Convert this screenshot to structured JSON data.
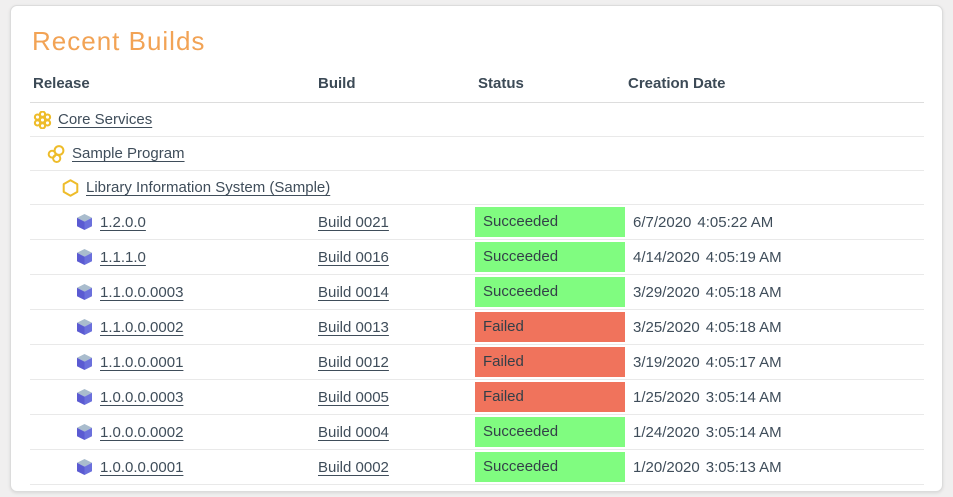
{
  "panel": {
    "title": "Recent Builds"
  },
  "colors": {
    "succeeded_bg": "#80fc80",
    "failed_bg": "#f0735c",
    "title_accent": "#f2a355",
    "icon_yellow": "#eebc2a",
    "cube_top": "#a9bccd",
    "cube_left": "#5a5ad2",
    "cube_right": "#6b70dc"
  },
  "table": {
    "columns": [
      "Release",
      "Build",
      "Status",
      "Creation Date"
    ],
    "rows": [
      {
        "type": "group",
        "level": 0,
        "icon": "program-cluster-icon",
        "release": "Core Services",
        "build": "",
        "status": "",
        "status_key": "",
        "date": ""
      },
      {
        "type": "group",
        "level": 1,
        "icon": "program-circles-icon",
        "release": "Sample Program",
        "build": "",
        "status": "",
        "status_key": "",
        "date": ""
      },
      {
        "type": "group",
        "level": 2,
        "icon": "project-hexagon-icon",
        "release": "Library Information System (Sample)",
        "build": "",
        "status": "",
        "status_key": "",
        "date": ""
      },
      {
        "type": "release",
        "level": 3,
        "icon": "release-cube-icon",
        "release": "1.2.0.0",
        "build": "Build 0021",
        "status": "Succeeded",
        "status_key": "succeeded",
        "date": "6/7/2020",
        "time": "4:05:22 AM"
      },
      {
        "type": "release",
        "level": 3,
        "icon": "release-cube-icon",
        "release": "1.1.1.0",
        "build": "Build 0016",
        "status": "Succeeded",
        "status_key": "succeeded",
        "date": "4/14/2020",
        "time": "4:05:19 AM"
      },
      {
        "type": "release",
        "level": 3,
        "icon": "release-cube-icon",
        "release": "1.1.0.0.0003",
        "build": "Build 0014",
        "status": "Succeeded",
        "status_key": "succeeded",
        "date": "3/29/2020",
        "time": "4:05:18 AM"
      },
      {
        "type": "release",
        "level": 3,
        "icon": "release-cube-icon",
        "release": "1.1.0.0.0002",
        "build": "Build 0013",
        "status": "Failed",
        "status_key": "failed",
        "date": "3/25/2020",
        "time": "4:05:18 AM"
      },
      {
        "type": "release",
        "level": 3,
        "icon": "release-cube-icon",
        "release": "1.1.0.0.0001",
        "build": "Build 0012",
        "status": "Failed",
        "status_key": "failed",
        "date": "3/19/2020",
        "time": "4:05:17 AM"
      },
      {
        "type": "release",
        "level": 3,
        "icon": "release-cube-icon",
        "release": "1.0.0.0.0003",
        "build": "Build 0005",
        "status": "Failed",
        "status_key": "failed",
        "date": "1/25/2020",
        "time": "3:05:14 AM"
      },
      {
        "type": "release",
        "level": 3,
        "icon": "release-cube-icon",
        "release": "1.0.0.0.0002",
        "build": "Build 0004",
        "status": "Succeeded",
        "status_key": "succeeded",
        "date": "1/24/2020",
        "time": "3:05:14 AM"
      },
      {
        "type": "release",
        "level": 3,
        "icon": "release-cube-icon",
        "release": "1.0.0.0.0001",
        "build": "Build 0002",
        "status": "Succeeded",
        "status_key": "succeeded",
        "date": "1/20/2020",
        "time": "3:05:13 AM"
      }
    ]
  }
}
